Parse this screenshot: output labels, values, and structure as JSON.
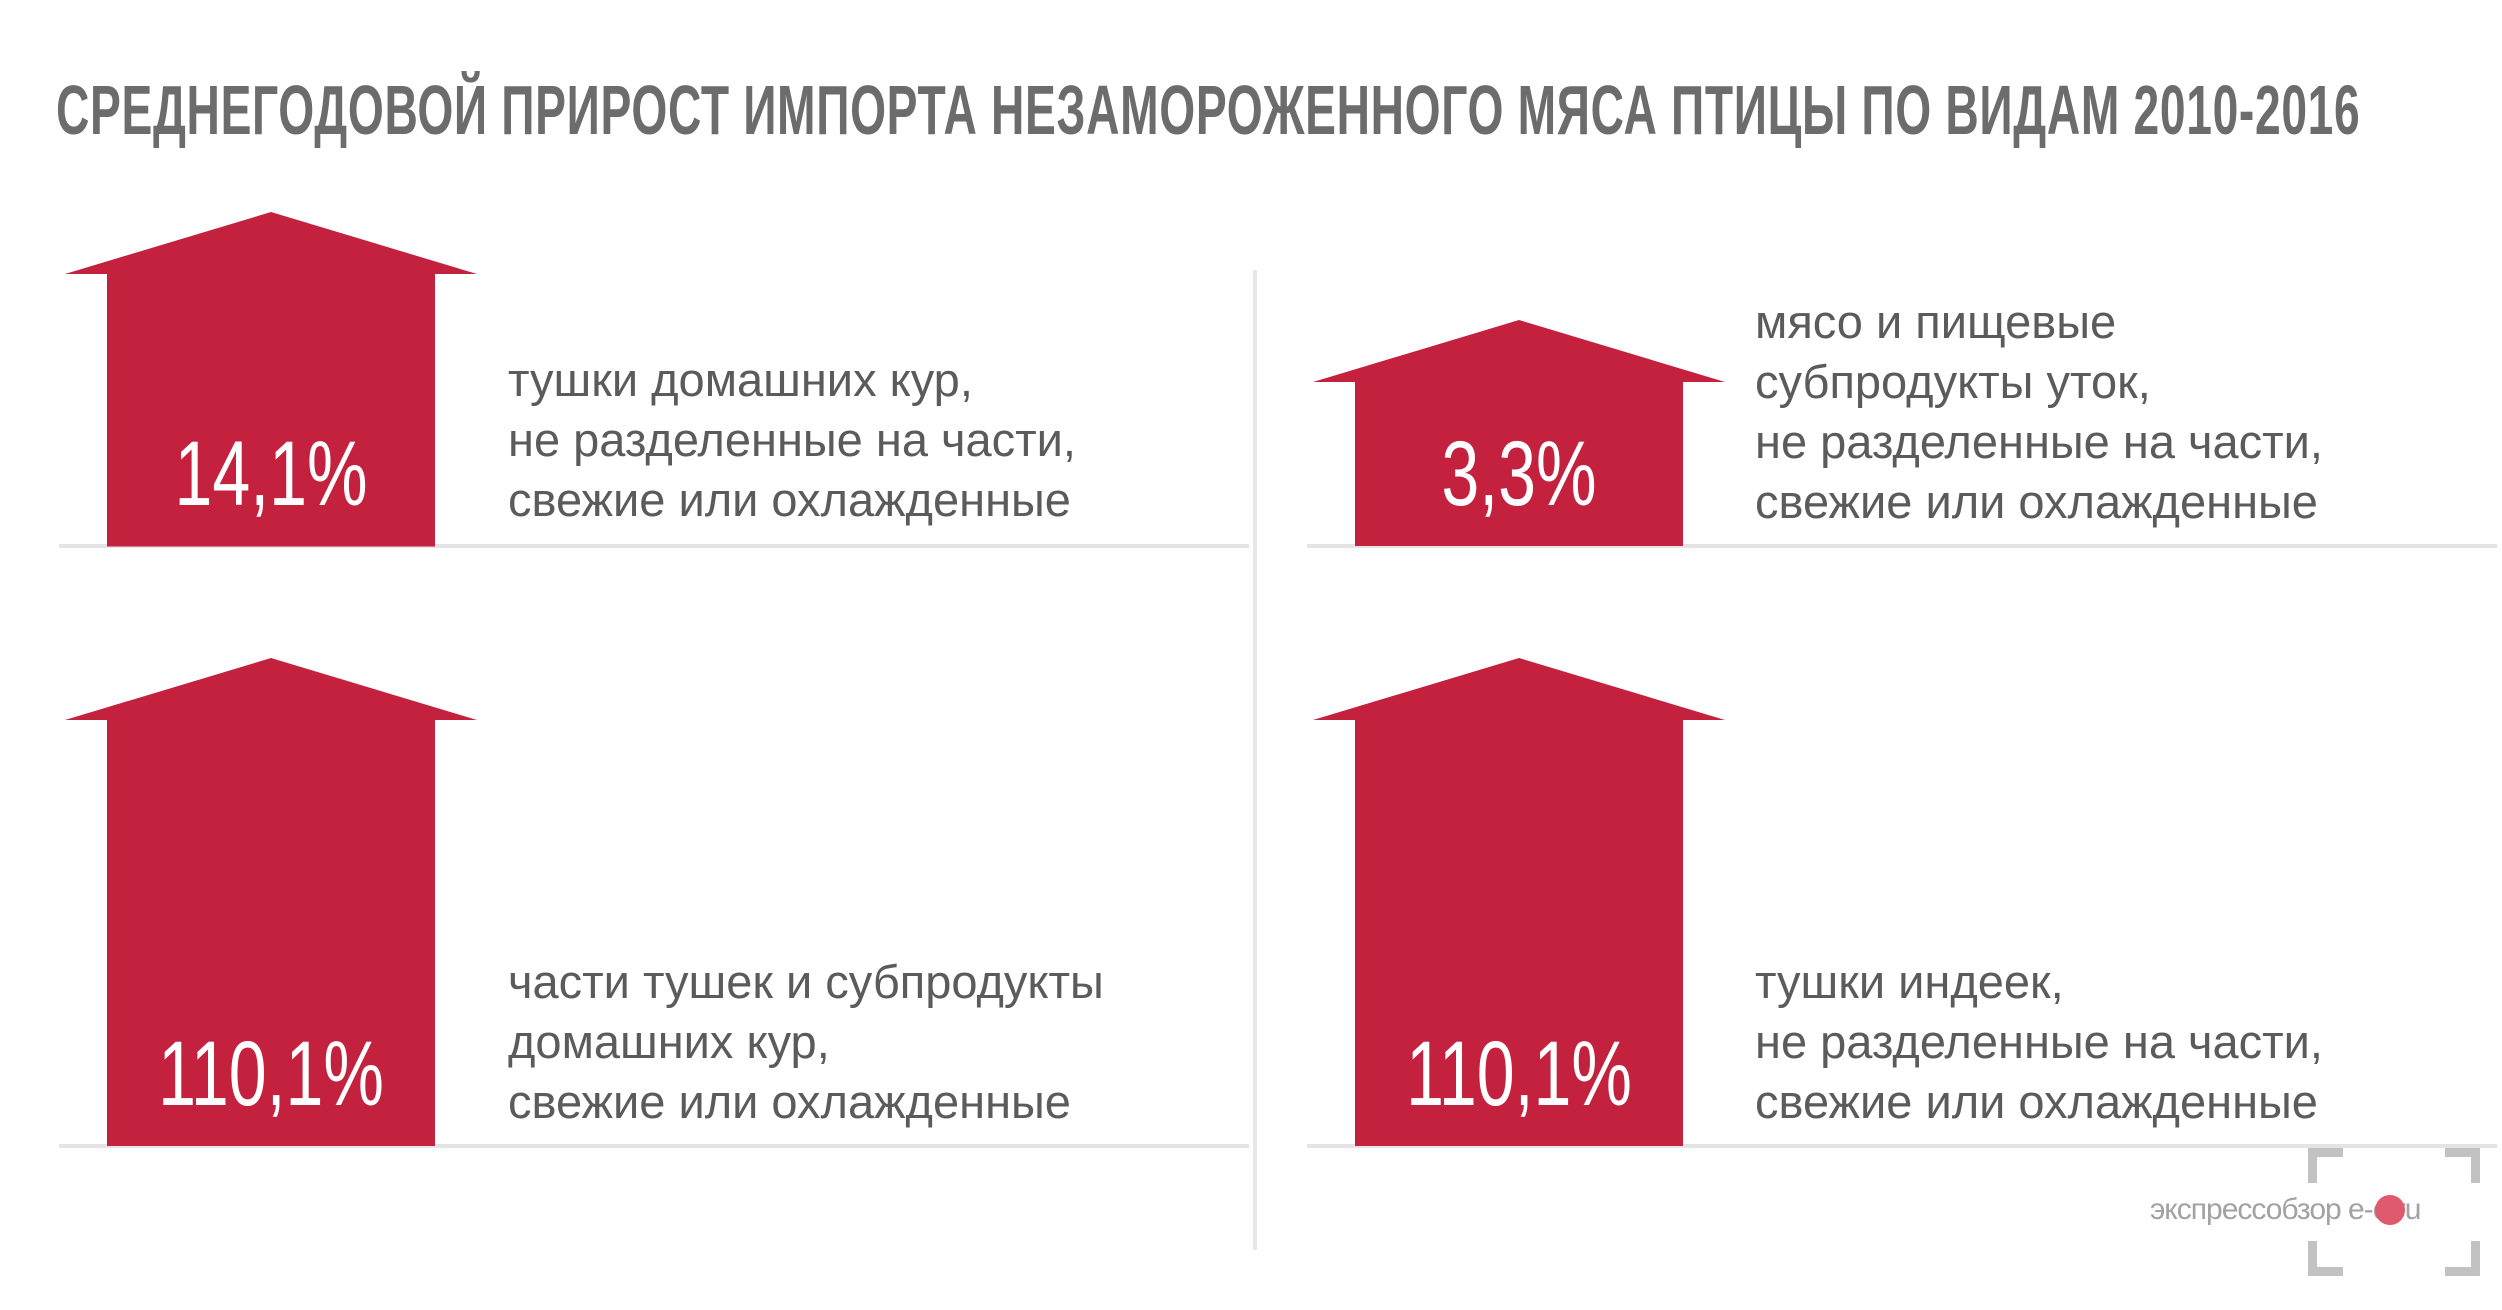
{
  "title": "СРЕДНЕГОДОВОЙ ПРИРОСТ ИМПОРТА НЕЗАМОРОЖЕННОГО МЯСА ПТИЦЫ ПО ВИДАМ 2010-2016",
  "chart_data": {
    "type": "bar",
    "title": "СРЕДНЕГОДОВОЙ ПРИРОСТ ИМПОРТА НЕЗАМОРОЖЕННОГО МЯСА ПТИЦЫ ПО ВИДАМ 2010-2016",
    "unit": "%",
    "categories": [
      "тушки домашних кур, не разделенные на части, свежие или охлажденные",
      "мясо и пищевые субпродукты уток, не разделенные на части, свежие или охлажденные",
      "части тушек и субпродукты домашних кур, свежие или охлажденные",
      "тушки индеек, не разделенные на части, свежие или охлажденные"
    ],
    "values": [
      14.1,
      3.3,
      110.1,
      110.1
    ],
    "value_labels": [
      "14,1%",
      "3,3%",
      "110,1%",
      "110,1%"
    ],
    "label_lines": [
      [
        "тушки домашних кур,",
        "не разделенные на части,",
        "свежие или охлажденные"
      ],
      [
        "мясо и пищевые",
        "субпродукты уток,",
        "не разделенные на части,",
        "свежие или охлажденные"
      ],
      [
        "части тушек и субпродукты",
        "домашних кур,",
        "свежие или охлажденные"
      ],
      [
        "тушки индеек,",
        "не разделенные на части,",
        "свежие или охлажденные"
      ]
    ],
    "layout": "2x2 grid",
    "grid": false,
    "legend": "none"
  },
  "colors": {
    "arrow": "#c4213f",
    "title": "#6c6c6c",
    "label": "#5b5b5b",
    "divider": "#e4e4e4",
    "watermark": "#a2a2a2",
    "watermark_dot": "#e05a6e"
  },
  "watermark": {
    "text": "экспрессобзор e-o.ru"
  }
}
